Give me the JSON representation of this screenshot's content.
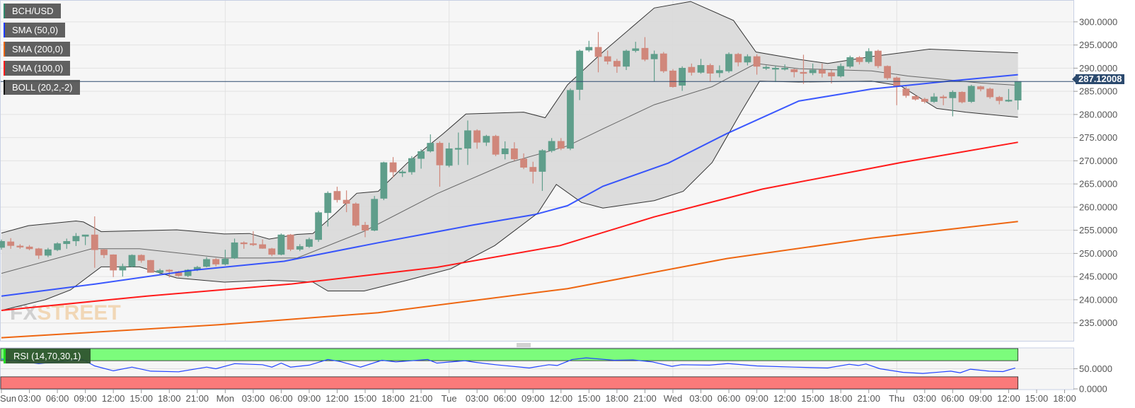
{
  "legend": {
    "symbol": {
      "label": "BCH/USD",
      "color": "#2e8b6e"
    },
    "sma50": {
      "label": "SMA (50,0)",
      "color": "#1a3cff"
    },
    "sma200": {
      "label": "SMA (200,0)",
      "color": "#ee6611"
    },
    "sma100": {
      "label": "SMA (100,0)",
      "color": "#ff1a1a"
    },
    "boll": {
      "label": "BOLL (20,2,-2)",
      "color": "#111111"
    }
  },
  "rsi_label": "RSI (14,70,30,1)",
  "last_price": "287.12008",
  "watermark": {
    "left": "FX",
    "right": "STREET"
  },
  "chart_data": {
    "type": "candlestick",
    "title": "BCH/USD",
    "interval": "1 hour",
    "y_axis": {
      "min": 235,
      "max": 300,
      "step": 5,
      "labels": [
        "300.0000",
        "295.0000",
        "290.0000",
        "285.0000",
        "280.0000",
        "275.0000",
        "270.0000",
        "265.0000",
        "260.0000",
        "255.0000",
        "250.0000",
        "245.0000",
        "240.0000",
        "235.0000"
      ]
    },
    "x_axis": {
      "step_hours": 3,
      "labels": [
        "Sun",
        "03:00",
        "06:00",
        "09:00",
        "12:00",
        "15:00",
        "18:00",
        "21:00",
        "Mon",
        "03:00",
        "06:00",
        "09:00",
        "12:00",
        "15:00",
        "18:00",
        "21:00",
        "Tue",
        "03:00",
        "06:00",
        "09:00",
        "12:00",
        "15:00",
        "18:00",
        "21:00",
        "Wed",
        "03:00",
        "06:00",
        "09:00",
        "12:00",
        "15:00",
        "18:00",
        "21:00",
        "Thu",
        "03:00",
        "06:00",
        "09:00",
        "12:00",
        "15:00",
        "18:00"
      ]
    },
    "candles_ohlc": [
      [
        251.3,
        253.0,
        250.8,
        252.6
      ],
      [
        252.5,
        253.3,
        251.0,
        251.7
      ],
      [
        251.6,
        252.0,
        251.0,
        251.4
      ],
      [
        251.4,
        251.8,
        250.7,
        251.0
      ],
      [
        251.0,
        251.2,
        248.8,
        249.6
      ],
      [
        249.6,
        251.2,
        249.2,
        250.8
      ],
      [
        250.8,
        252.4,
        250.5,
        252.1
      ],
      [
        252.1,
        253.2,
        251.0,
        252.6
      ],
      [
        252.7,
        254.4,
        251.6,
        253.7
      ],
      [
        253.7,
        254.0,
        251.8,
        254.0
      ],
      [
        254.0,
        258.0,
        246.9,
        250.8
      ],
      [
        250.8,
        251.0,
        249.0,
        249.7
      ],
      [
        249.7,
        249.8,
        244.9,
        246.4
      ],
      [
        246.4,
        247.8,
        245.0,
        247.2
      ],
      [
        247.2,
        249.8,
        247.0,
        249.6
      ],
      [
        249.6,
        249.8,
        248.0,
        248.5
      ],
      [
        248.5,
        248.6,
        245.9,
        245.9
      ],
      [
        245.9,
        246.7,
        245.5,
        246.3
      ],
      [
        246.4,
        246.6,
        244.8,
        246.2
      ],
      [
        246.0,
        246.2,
        245.0,
        245.2
      ],
      [
        245.2,
        246.6,
        244.9,
        246.4
      ],
      [
        246.5,
        247.3,
        246.2,
        247.0
      ],
      [
        247.2,
        249.2,
        247.0,
        248.7
      ],
      [
        248.7,
        249.0,
        247.2,
        247.7
      ],
      [
        247.7,
        250.8,
        247.4,
        248.8
      ],
      [
        249.0,
        253.2,
        248.8,
        252.3
      ],
      [
        252.3,
        252.6,
        251.0,
        252.1
      ],
      [
        252.1,
        254.8,
        251.6,
        252.0
      ],
      [
        251.9,
        253.0,
        251.0,
        251.1
      ],
      [
        251.0,
        251.2,
        249.4,
        249.8
      ],
      [
        249.8,
        254.3,
        249.6,
        254.0
      ],
      [
        254.0,
        254.2,
        250.5,
        250.9
      ],
      [
        250.9,
        252.0,
        250.5,
        251.5
      ],
      [
        251.5,
        253.4,
        251.2,
        253.0
      ],
      [
        253.0,
        259.2,
        252.5,
        258.8
      ],
      [
        258.8,
        263.4,
        255.8,
        263.0
      ],
      [
        263.4,
        264.4,
        261.0,
        261.6
      ],
      [
        261.5,
        263.6,
        258.9,
        260.8
      ],
      [
        260.7,
        261.0,
        255.8,
        256.1
      ],
      [
        256.1,
        256.8,
        253.5,
        255.0
      ],
      [
        255.0,
        262.4,
        254.8,
        261.7
      ],
      [
        261.9,
        269.8,
        261.5,
        269.6
      ],
      [
        269.6,
        270.8,
        266.4,
        267.6
      ],
      [
        267.6,
        268.0,
        266.5,
        267.6
      ],
      [
        267.6,
        271.0,
        267.0,
        270.5
      ],
      [
        270.5,
        272.5,
        268.3,
        272.0
      ],
      [
        272.1,
        275.7,
        271.8,
        273.8
      ],
      [
        273.8,
        274.2,
        264.4,
        269.1
      ],
      [
        269.0,
        273.9,
        268.6,
        272.6
      ],
      [
        272.7,
        276.1,
        269.1,
        272.7
      ],
      [
        272.7,
        278.7,
        269.1,
        276.5
      ],
      [
        276.5,
        276.8,
        272.6,
        274.0
      ],
      [
        274.0,
        275.6,
        273.2,
        275.3
      ],
      [
        275.3,
        275.6,
        271.0,
        271.4
      ],
      [
        271.5,
        274.2,
        270.3,
        272.6
      ],
      [
        272.6,
        274.0,
        270.0,
        270.4
      ],
      [
        270.4,
        271.6,
        268.2,
        268.6
      ],
      [
        268.6,
        269.8,
        265.1,
        267.7
      ],
      [
        267.7,
        272.5,
        263.5,
        272.2
      ],
      [
        272.2,
        274.9,
        271.8,
        274.2
      ],
      [
        274.2,
        274.9,
        272.3,
        272.7
      ],
      [
        272.7,
        285.6,
        272.3,
        285.2
      ],
      [
        285.4,
        294.0,
        283.1,
        293.7
      ],
      [
        293.9,
        295.9,
        293.5,
        294.5
      ],
      [
        294.5,
        297.8,
        289.1,
        292.5
      ],
      [
        292.5,
        293.8,
        290.8,
        291.5
      ],
      [
        291.5,
        292.0,
        289.0,
        290.4
      ],
      [
        290.4,
        294.0,
        289.6,
        293.7
      ],
      [
        293.8,
        295.7,
        293.4,
        294.2
      ],
      [
        294.3,
        296.7,
        291.5,
        291.9
      ],
      [
        292.0,
        293.8,
        287.1,
        293.0
      ],
      [
        293.1,
        293.5,
        289.0,
        289.4
      ],
      [
        289.4,
        289.8,
        285.8,
        286.0
      ],
      [
        286.3,
        290.4,
        285.1,
        290.0
      ],
      [
        290.2,
        291.0,
        288.4,
        289.1
      ],
      [
        289.1,
        292.0,
        288.8,
        290.6
      ],
      [
        290.6,
        291.0,
        287.1,
        288.9
      ],
      [
        289.0,
        290.6,
        288.0,
        289.5
      ],
      [
        289.4,
        293.4,
        289.0,
        293.0
      ],
      [
        293.0,
        293.3,
        290.4,
        291.3
      ],
      [
        291.3,
        293.0,
        290.6,
        292.5
      ],
      [
        292.5,
        293.0,
        288.6,
        290.4
      ],
      [
        290.2,
        290.6,
        289.6,
        290.2
      ],
      [
        290.0,
        290.6,
        287.0,
        290.0
      ],
      [
        289.9,
        290.8,
        289.5,
        290.0
      ],
      [
        289.7,
        289.9,
        288.0,
        289.2
      ],
      [
        289.1,
        292.9,
        286.6,
        289.0
      ],
      [
        289.0,
        291.0,
        288.5,
        289.6
      ],
      [
        289.6,
        291.0,
        288.0,
        288.9
      ],
      [
        289.0,
        289.6,
        286.7,
        288.3
      ],
      [
        288.3,
        291.0,
        288.0,
        290.4
      ],
      [
        290.4,
        292.7,
        290.0,
        292.3
      ],
      [
        292.3,
        292.6,
        290.8,
        291.4
      ],
      [
        291.4,
        294.3,
        291.0,
        293.6
      ],
      [
        293.7,
        294.0,
        290.0,
        290.5
      ],
      [
        290.4,
        290.6,
        287.5,
        287.9
      ],
      [
        287.9,
        288.2,
        282.0,
        286.1
      ],
      [
        285.5,
        286.0,
        283.6,
        284.1
      ],
      [
        283.9,
        284.2,
        283.0,
        283.3
      ],
      [
        283.3,
        283.6,
        282.4,
        282.8
      ],
      [
        282.8,
        284.6,
        282.5,
        283.8
      ],
      [
        283.8,
        284.2,
        282.0,
        283.6
      ],
      [
        283.6,
        285.2,
        279.6,
        284.8
      ],
      [
        284.8,
        285.0,
        282.4,
        282.7
      ],
      [
        282.8,
        286.4,
        282.5,
        286.1
      ],
      [
        286.0,
        286.2,
        285.0,
        285.5
      ],
      [
        285.5,
        285.8,
        283.4,
        283.8
      ],
      [
        283.7,
        284.0,
        282.2,
        283.0
      ],
      [
        283.0,
        285.5,
        282.7,
        283.1
      ],
      [
        283.1,
        287.12,
        281.0,
        287.12
      ]
    ],
    "indicators": {
      "sma50": [
        [
          0,
          240.8
        ],
        [
          10.1,
          243.4
        ],
        [
          20.2,
          246.3
        ],
        [
          30.3,
          248.3
        ],
        [
          40.4,
          252.3
        ],
        [
          50.5,
          256.1
        ],
        [
          57.2,
          258.4
        ],
        [
          60.7,
          260.3
        ],
        [
          64.5,
          264.5
        ],
        [
          71.5,
          269.5
        ],
        [
          77.8,
          275.9
        ],
        [
          85.5,
          282.9
        ],
        [
          93.3,
          285.5
        ],
        [
          101.1,
          287.1
        ],
        [
          109,
          288.6
        ]
      ],
      "sma100": [
        [
          0,
          237.7
        ],
        [
          15.6,
          240.8
        ],
        [
          31.1,
          243.4
        ],
        [
          46.7,
          247.0
        ],
        [
          59.9,
          251.7
        ],
        [
          70,
          257.9
        ],
        [
          81.6,
          263.9
        ],
        [
          96.4,
          269.6
        ],
        [
          109,
          274.0
        ]
      ],
      "sma200": [
        [
          0,
          231.8
        ],
        [
          23.3,
          234.6
        ],
        [
          40.4,
          237.2
        ],
        [
          60.7,
          242.4
        ],
        [
          77.8,
          248.9
        ],
        [
          93.3,
          253.3
        ],
        [
          109,
          256.9
        ]
      ],
      "boll_upper": [
        [
          0,
          254.4
        ],
        [
          2.9,
          256.0
        ],
        [
          8,
          257.0
        ],
        [
          8.8,
          256.8
        ],
        [
          10.7,
          254.7
        ],
        [
          18.8,
          255.1
        ],
        [
          23.9,
          254.2
        ],
        [
          26.6,
          254.3
        ],
        [
          28.7,
          253.1
        ],
        [
          31.7,
          254.1
        ],
        [
          33.4,
          254.3
        ],
        [
          35.8,
          258.6
        ],
        [
          38.1,
          263.0
        ],
        [
          40.4,
          263.4
        ],
        [
          43.5,
          269.5
        ],
        [
          47.4,
          275.9
        ],
        [
          49.8,
          280.1
        ],
        [
          56,
          280.5
        ],
        [
          58.3,
          279.3
        ],
        [
          60.7,
          286.4
        ],
        [
          64.5,
          293.5
        ],
        [
          70,
          303.0
        ],
        [
          73.9,
          304.4
        ],
        [
          78.5,
          300.3
        ],
        [
          80.9,
          293.5
        ],
        [
          85.5,
          291.9
        ],
        [
          88.6,
          291.0
        ],
        [
          93.3,
          292.5
        ],
        [
          99.5,
          294.1
        ],
        [
          109,
          293.3
        ]
      ],
      "boll_middle": [
        [
          0,
          245.7
        ],
        [
          9.7,
          251.0
        ],
        [
          14.8,
          251.0
        ],
        [
          23.9,
          249.0
        ],
        [
          31.7,
          249.0
        ],
        [
          38.9,
          254.8
        ],
        [
          46.7,
          262.9
        ],
        [
          54.4,
          269.6
        ],
        [
          60.7,
          273.2
        ],
        [
          64.5,
          276.9
        ],
        [
          70,
          282.1
        ],
        [
          76.2,
          286.0
        ],
        [
          80.9,
          291.0
        ],
        [
          85.5,
          289.9
        ],
        [
          93.3,
          289.4
        ],
        [
          97.2,
          288.3
        ],
        [
          105,
          286.8
        ],
        [
          109,
          286.3
        ]
      ],
      "boll_lower": [
        [
          0,
          237.7
        ],
        [
          4.7,
          240.0
        ],
        [
          7.4,
          242.1
        ],
        [
          10.7,
          247.1
        ],
        [
          14.8,
          247.1
        ],
        [
          18.8,
          244.7
        ],
        [
          23.9,
          243.8
        ],
        [
          28.7,
          244.2
        ],
        [
          31.7,
          244.0
        ],
        [
          33.4,
          243.8
        ],
        [
          35,
          241.9
        ],
        [
          38.9,
          241.9
        ],
        [
          43.5,
          244.2
        ],
        [
          48.2,
          246.7
        ],
        [
          52.9,
          251.7
        ],
        [
          57.5,
          258.7
        ],
        [
          59.5,
          264.9
        ],
        [
          62.2,
          261.0
        ],
        [
          64.5,
          259.8
        ],
        [
          70,
          261.4
        ],
        [
          73.1,
          263.4
        ],
        [
          76.2,
          269.6
        ],
        [
          79.3,
          280.5
        ],
        [
          81.3,
          287.2
        ],
        [
          85.5,
          287.0
        ],
        [
          93.3,
          287.2
        ],
        [
          96.4,
          286.2
        ],
        [
          100.3,
          281.3
        ],
        [
          103.4,
          280.5
        ],
        [
          109,
          279.4
        ]
      ]
    },
    "rsi": {
      "overbought": 70,
      "oversold": 30,
      "y_labels": [
        "50.0000",
        "0.0000"
      ],
      "series": [
        [
          0,
          74
        ],
        [
          4,
          62.6
        ],
        [
          8.7,
          73
        ],
        [
          10,
          57
        ],
        [
          12,
          45
        ],
        [
          14,
          54
        ],
        [
          16,
          44
        ],
        [
          19,
          42.5
        ],
        [
          22,
          54
        ],
        [
          23,
          50
        ],
        [
          25,
          62.6
        ],
        [
          28,
          60
        ],
        [
          29,
          54
        ],
        [
          30,
          64
        ],
        [
          31,
          54
        ],
        [
          33,
          59
        ],
        [
          35,
          73
        ],
        [
          36.3,
          68
        ],
        [
          38.5,
          54
        ],
        [
          40.8,
          71
        ],
        [
          42.3,
          67
        ],
        [
          45.7,
          73
        ],
        [
          46.7,
          64
        ],
        [
          49.7,
          70
        ],
        [
          50.8,
          66
        ],
        [
          53,
          60
        ],
        [
          56.6,
          52
        ],
        [
          58.7,
          60
        ],
        [
          59.6,
          58
        ],
        [
          61.2,
          73
        ],
        [
          62.7,
          77
        ],
        [
          65.7,
          71
        ],
        [
          67.7,
          72
        ],
        [
          69.8,
          67
        ],
        [
          71.9,
          56
        ],
        [
          72.9,
          60
        ],
        [
          75.9,
          59
        ],
        [
          77.9,
          63
        ],
        [
          81,
          57
        ],
        [
          85,
          54
        ],
        [
          88.6,
          52
        ],
        [
          90.9,
          61
        ],
        [
          91.9,
          58
        ],
        [
          92.7,
          62
        ],
        [
          94.2,
          50
        ],
        [
          96.7,
          41
        ],
        [
          98.8,
          38.5
        ],
        [
          100.5,
          41.5
        ],
        [
          101.8,
          44
        ],
        [
          102.8,
          40
        ],
        [
          103.9,
          49
        ],
        [
          105.9,
          44
        ],
        [
          107.4,
          43
        ],
        [
          108.7,
          52
        ]
      ]
    },
    "colors": {
      "up": "#5f9e8b",
      "down": "#d0877b",
      "band_fill": "#d9d9d9",
      "price_line": "#2c4a6e",
      "rsi_line": "#2244ff",
      "rsi_overbought": "#7cfc7c",
      "rsi_oversold": "#fa7a7a"
    }
  }
}
